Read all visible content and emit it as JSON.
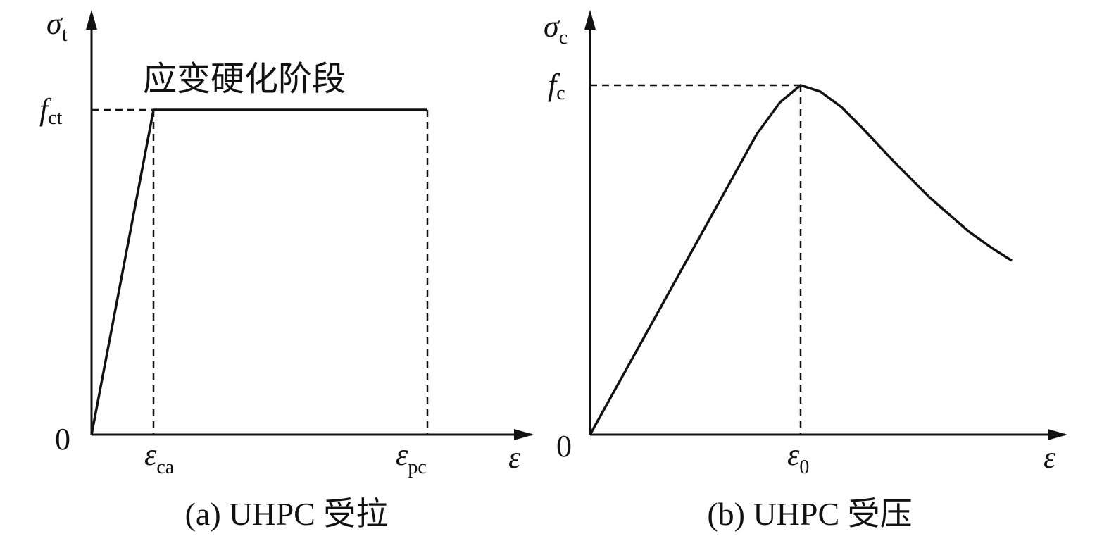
{
  "panels": [
    {
      "y_label": {
        "symbol": "σ",
        "subscript": "t"
      },
      "stress_label": {
        "symbol": "f",
        "subscript": "ct"
      },
      "origin": "0",
      "strain_labels": [
        {
          "symbol": "ε",
          "subscript": "ca"
        },
        {
          "symbol": "ε",
          "subscript": "pc"
        }
      ],
      "x_label": "ε",
      "annotation": "应变硬化阶段",
      "caption": "(a) UHPC 受拉"
    },
    {
      "y_label": {
        "symbol": "σ",
        "subscript": "c"
      },
      "stress_label": {
        "symbol": "f",
        "subscript": "c"
      },
      "origin": "0",
      "strain_labels": [
        {
          "symbol": "ε",
          "subscript": "0"
        }
      ],
      "x_label": "ε",
      "caption": "(b) UHPC 受压"
    }
  ]
}
